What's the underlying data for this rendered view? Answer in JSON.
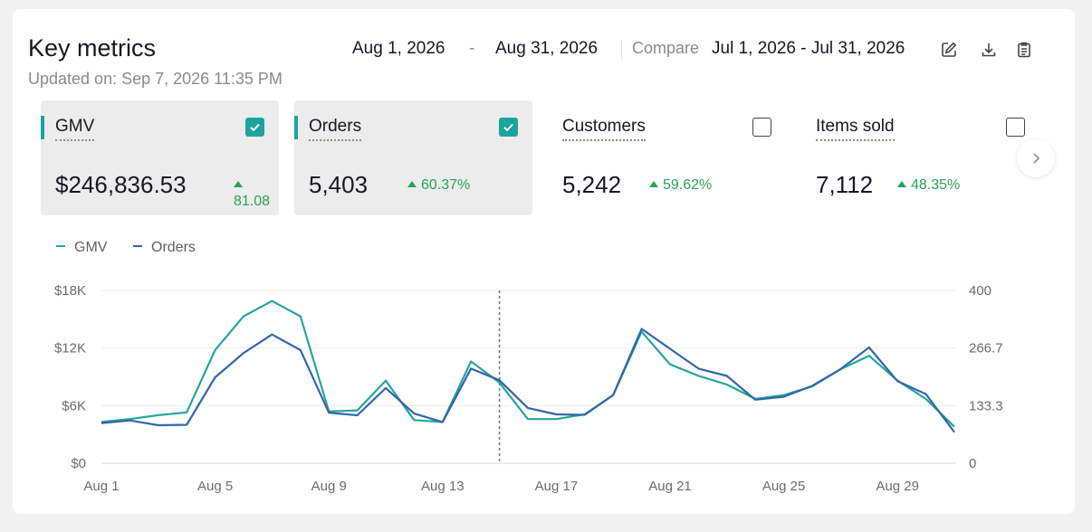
{
  "header": {
    "title": "Key metrics",
    "updated": "Updated on: Sep 7, 2026 11:35 PM",
    "date_start": "Aug 1, 2026",
    "date_separator": "-",
    "date_end": "Aug 31, 2026",
    "compare_label": "Compare",
    "compare_range": "Jul 1, 2026 - Jul 31, 2026",
    "tools": [
      "edit-icon",
      "download-icon",
      "clipboard-icon"
    ]
  },
  "metrics": [
    {
      "label": "GMV",
      "value": "$246,836.53",
      "delta": "81.08",
      "checked": true,
      "active": true
    },
    {
      "label": "Orders",
      "value": "5,403",
      "delta": "60.37%",
      "checked": true,
      "active": true
    },
    {
      "label": "Customers",
      "value": "5,242",
      "delta": "59.62%",
      "checked": false,
      "active": false
    },
    {
      "label": "Items sold",
      "value": "7,112",
      "delta": "48.35%",
      "checked": false,
      "active": false
    }
  ],
  "legend": {
    "gmv": "GMV",
    "orders": "Orders"
  },
  "colors": {
    "gmv": "#26a69a",
    "orders": "#3366aa",
    "accent": "#1aa49d",
    "positive": "#25a35a"
  },
  "chart_data": {
    "type": "line",
    "x": [
      "Aug 1",
      "Aug 2",
      "Aug 3",
      "Aug 4",
      "Aug 5",
      "Aug 6",
      "Aug 7",
      "Aug 8",
      "Aug 9",
      "Aug 10",
      "Aug 11",
      "Aug 12",
      "Aug 13",
      "Aug 14",
      "Aug 15",
      "Aug 16",
      "Aug 17",
      "Aug 18",
      "Aug 19",
      "Aug 20",
      "Aug 21",
      "Aug 22",
      "Aug 23",
      "Aug 24",
      "Aug 25",
      "Aug 26",
      "Aug 27",
      "Aug 28",
      "Aug 29",
      "Aug 30",
      "Aug 31"
    ],
    "x_tick_labels": [
      "Aug 1",
      "Aug 5",
      "Aug 9",
      "Aug 13",
      "Aug 17",
      "Aug 21",
      "Aug 25",
      "Aug 29"
    ],
    "series": [
      {
        "name": "GMV",
        "axis": "left",
        "color": "#26a69a",
        "values": [
          4300,
          4600,
          5000,
          5300,
          11800,
          15300,
          16900,
          15300,
          5400,
          5500,
          8600,
          4500,
          4300,
          10600,
          8400,
          4600,
          4600,
          5100,
          7100,
          13700,
          10300,
          9100,
          8200,
          6700,
          7100,
          8000,
          9800,
          11200,
          8600,
          6700,
          3800
        ]
      },
      {
        "name": "Orders",
        "axis": "right",
        "color": "#3366aa",
        "values": [
          93,
          99,
          88,
          89,
          199,
          255,
          298,
          262,
          117,
          111,
          174,
          115,
          95,
          219,
          192,
          128,
          113,
          112,
          158,
          311,
          265,
          219,
          202,
          147,
          154,
          179,
          218,
          268,
          190,
          160,
          72
        ]
      }
    ],
    "y_left": {
      "ticks": [
        "$0",
        "$6K",
        "$12K",
        "$18K"
      ],
      "range": [
        0,
        18000
      ]
    },
    "y_right": {
      "ticks": [
        "0",
        "133.3",
        "266.7",
        "400"
      ],
      "range": [
        0,
        400
      ]
    },
    "grid": true,
    "today_marker": "Aug 15",
    "legend_position": "top-left"
  }
}
